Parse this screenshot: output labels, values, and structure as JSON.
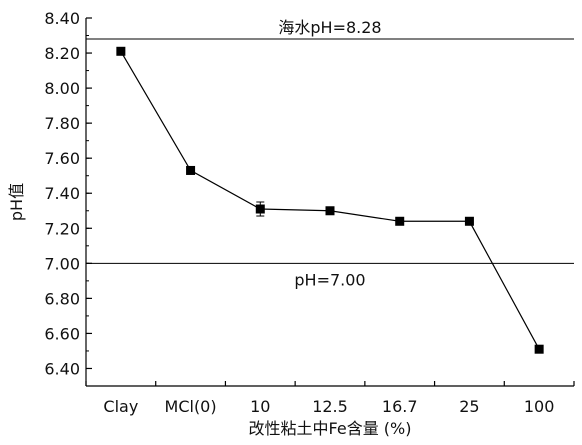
{
  "chart_data": {
    "type": "line",
    "title": "",
    "xlabel": "改性粘土中Fe含量 (%)",
    "ylabel": "pH值",
    "categories": [
      "Clay",
      "MCl(0)",
      "10",
      "12.5",
      "16.7",
      "25",
      "100"
    ],
    "series": [
      {
        "values": [
          8.21,
          7.53,
          7.31,
          7.3,
          7.24,
          7.24,
          6.51
        ],
        "error": [
          0,
          0,
          0.04,
          0,
          0,
          0,
          0
        ],
        "marker": "square",
        "color": "#000000"
      }
    ],
    "ylim": [
      6.3,
      8.4
    ],
    "yticks": [
      "6.40",
      "6.60",
      "6.80",
      "7.00",
      "7.20",
      "7.40",
      "7.60",
      "7.80",
      "8.00",
      "8.20",
      "8.40"
    ],
    "ytick_values": [
      6.4,
      6.6,
      6.8,
      7.0,
      7.2,
      7.4,
      7.6,
      7.8,
      8.0,
      8.2,
      8.4
    ],
    "y_minor_step": 0.1,
    "reference_lines": [
      {
        "label": "海水pH=8.28",
        "value": 8.28
      },
      {
        "label": "pH=7.00",
        "value": 7.0
      }
    ],
    "grid": false,
    "legend": "none"
  }
}
